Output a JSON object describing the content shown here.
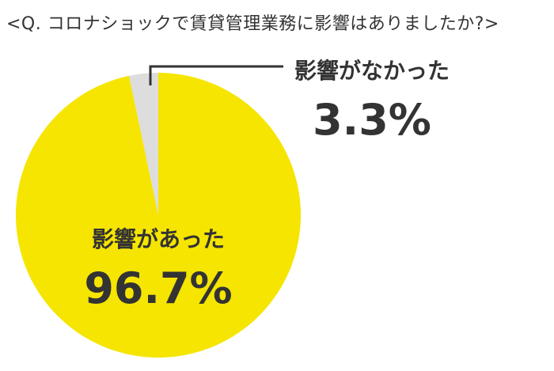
{
  "chart_data": {
    "type": "pie",
    "title": "<Q. コロナショックで賃貸管理業務に影響はありましたか?>",
    "slices": [
      {
        "label": "影響がなかった",
        "value": 3.3,
        "value_text": "3.3%",
        "color": "#DDDDDD"
      },
      {
        "label": "影響があった",
        "value": 96.7,
        "value_text": "96.7%",
        "color": "#F5E500"
      }
    ],
    "legend": "none",
    "leader_line_color": "#333333"
  }
}
